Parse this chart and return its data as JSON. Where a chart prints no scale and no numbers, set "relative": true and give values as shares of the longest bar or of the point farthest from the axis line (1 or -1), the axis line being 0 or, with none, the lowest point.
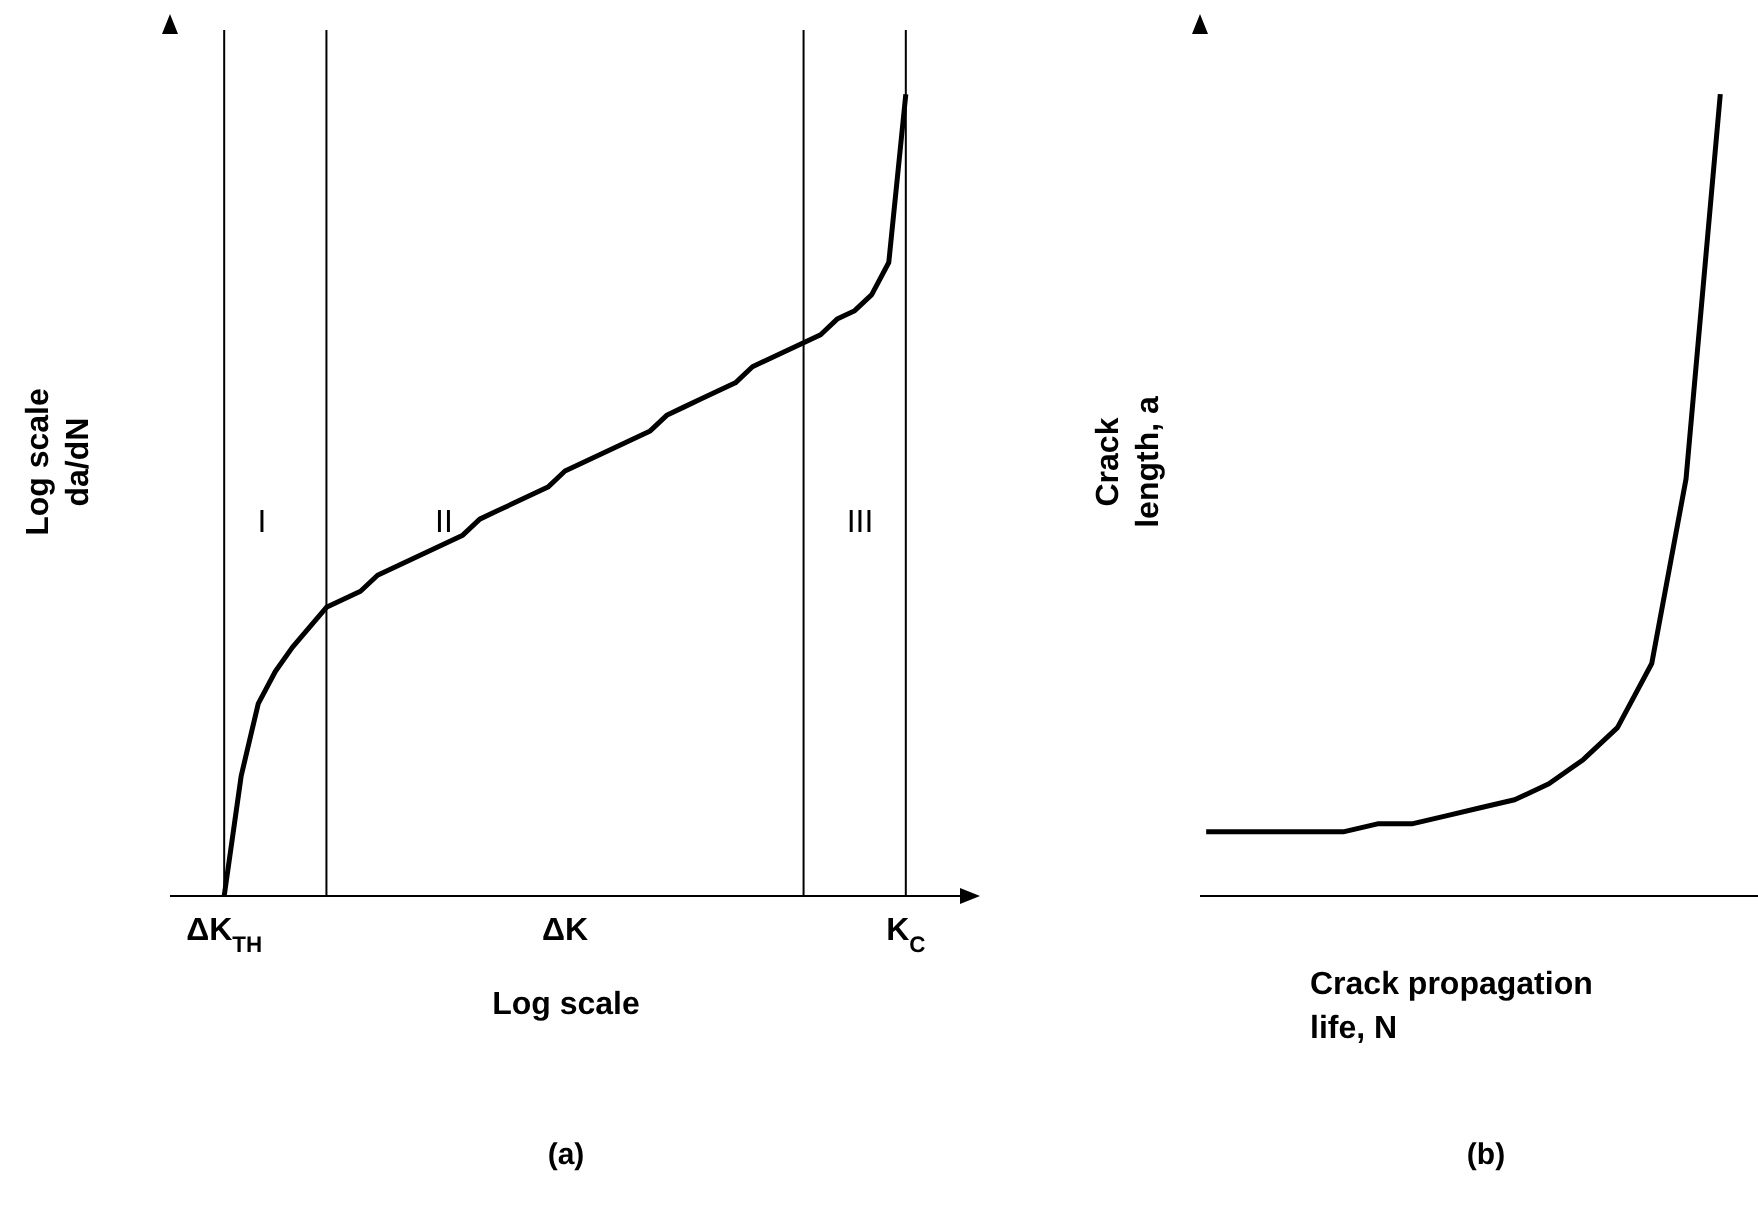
{
  "chart_data": [
    {
      "type": "line",
      "subtitle": "(a)",
      "xlabel": "Log scale",
      "ylabel": "Log scale\nda/dN",
      "relative": true,
      "categories": [
        "ΔK$_{TH}$",
        null,
        null,
        null,
        null,
        null,
        null,
        null,
        null,
        null,
        null,
        null,
        null,
        null,
        null,
        null,
        null,
        null,
        null,
        null,
        "ΔK",
        null,
        null,
        null,
        null,
        null,
        null,
        null,
        null,
        null,
        null,
        null,
        null,
        null,
        null,
        null,
        null,
        null,
        null,
        null,
        "K$_{C}$"
      ],
      "series": [
        {
          "color": "#000000",
          "values": [
            0,
            0.15,
            0.24,
            0.28,
            0.31,
            0.335,
            0.36,
            0.37,
            0.38,
            0.4,
            0.41,
            0.42,
            0.43,
            0.44,
            0.45,
            0.47,
            0.48,
            0.49,
            0.5,
            0.51,
            0.53,
            0.54,
            0.55,
            0.56,
            0.57,
            0.58,
            0.6,
            0.61,
            0.62,
            0.63,
            0.64,
            0.66,
            0.67,
            0.68,
            0.69,
            0.7,
            0.72,
            0.73,
            0.75,
            0.79,
            1
          ]
        }
      ],
      "annotations": [
        "I",
        "II",
        "III"
      ],
      "grid": "x"
    },
    {
      "type": "line",
      "subtitle": "(b)",
      "xlabel": "Crack propagation\nlife, N",
      "ylabel": "Crack\nlength, a",
      "relative": true,
      "categories": [
        null,
        null,
        null,
        null,
        null,
        null,
        null,
        null,
        null,
        null,
        null,
        null,
        null,
        null,
        null,
        null
      ],
      "series": [
        {
          "color": "#000000",
          "values": [
            0.08,
            0.08,
            0.08,
            0.08,
            0.08,
            0.09,
            0.09,
            0.1,
            0.11,
            0.12,
            0.14,
            0.17,
            0.21,
            0.29,
            0.52,
            1
          ]
        }
      ]
    }
  ]
}
